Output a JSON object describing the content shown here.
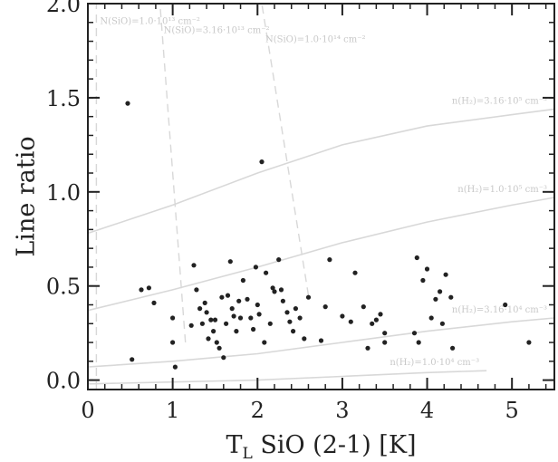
{
  "chart_data": {
    "type": "scatter",
    "title": "",
    "xlabel": "T",
    "xlabel_sub": "L",
    "xlabel_rest": " SiO (2-1) [K]",
    "ylabel": "Line ratio",
    "xlim": [
      0,
      5.5
    ],
    "ylim": [
      -0.05,
      2.0
    ],
    "x_ticks": [
      0,
      1,
      2,
      3,
      4,
      5
    ],
    "y_ticks": [
      0.0,
      0.5,
      1.0,
      1.5,
      2.0
    ],
    "y_tick_labels": [
      "0.0",
      "0.5",
      "1.0",
      "1.5",
      "2.0"
    ],
    "grid": false,
    "points": [
      [
        0.47,
        1.47
      ],
      [
        0.52,
        0.11
      ],
      [
        0.63,
        0.48
      ],
      [
        0.72,
        0.49
      ],
      [
        0.78,
        0.41
      ],
      [
        1.0,
        0.33
      ],
      [
        1.0,
        0.2
      ],
      [
        1.03,
        0.07
      ],
      [
        1.22,
        0.29
      ],
      [
        1.25,
        0.61
      ],
      [
        1.28,
        0.48
      ],
      [
        1.32,
        0.38
      ],
      [
        1.35,
        0.3
      ],
      [
        1.38,
        0.41
      ],
      [
        1.4,
        0.36
      ],
      [
        1.42,
        0.22
      ],
      [
        1.45,
        0.32
      ],
      [
        1.48,
        0.26
      ],
      [
        1.5,
        0.32
      ],
      [
        1.52,
        0.2
      ],
      [
        1.55,
        0.17
      ],
      [
        1.58,
        0.44
      ],
      [
        1.6,
        0.12
      ],
      [
        1.63,
        0.3
      ],
      [
        1.65,
        0.45
      ],
      [
        1.68,
        0.63
      ],
      [
        1.7,
        0.38
      ],
      [
        1.72,
        0.34
      ],
      [
        1.75,
        0.26
      ],
      [
        1.78,
        0.42
      ],
      [
        1.8,
        0.33
      ],
      [
        1.83,
        0.53
      ],
      [
        1.88,
        0.43
      ],
      [
        1.92,
        0.33
      ],
      [
        1.95,
        0.27
      ],
      [
        1.98,
        0.6
      ],
      [
        2.0,
        0.4
      ],
      [
        2.02,
        0.35
      ],
      [
        2.05,
        1.16
      ],
      [
        2.08,
        0.2
      ],
      [
        2.1,
        0.57
      ],
      [
        2.15,
        0.3
      ],
      [
        2.18,
        0.49
      ],
      [
        2.2,
        0.47
      ],
      [
        2.25,
        0.64
      ],
      [
        2.28,
        0.48
      ],
      [
        2.3,
        0.42
      ],
      [
        2.35,
        0.36
      ],
      [
        2.38,
        0.31
      ],
      [
        2.42,
        0.26
      ],
      [
        2.45,
        0.38
      ],
      [
        2.5,
        0.33
      ],
      [
        2.55,
        0.22
      ],
      [
        2.6,
        0.44
      ],
      [
        2.75,
        0.21
      ],
      [
        2.8,
        0.39
      ],
      [
        2.85,
        0.64
      ],
      [
        3.0,
        0.34
      ],
      [
        3.1,
        0.31
      ],
      [
        3.15,
        0.57
      ],
      [
        3.25,
        0.39
      ],
      [
        3.3,
        0.17
      ],
      [
        3.35,
        0.3
      ],
      [
        3.4,
        0.32
      ],
      [
        3.45,
        0.35
      ],
      [
        3.5,
        0.2
      ],
      [
        3.5,
        0.25
      ],
      [
        3.85,
        0.25
      ],
      [
        3.88,
        0.65
      ],
      [
        3.9,
        0.2
      ],
      [
        3.95,
        0.53
      ],
      [
        4.0,
        0.59
      ],
      [
        4.05,
        0.33
      ],
      [
        4.1,
        0.43
      ],
      [
        4.15,
        0.47
      ],
      [
        4.18,
        0.3
      ],
      [
        4.22,
        0.56
      ],
      [
        4.28,
        0.44
      ],
      [
        4.3,
        0.17
      ],
      [
        4.92,
        0.4
      ],
      [
        5.2,
        0.2
      ]
    ],
    "model_curves": [
      {
        "label": "n(H₂)=3.16·10⁵ cm⁻³",
        "points": [
          [
            0.0,
            0.78
          ],
          [
            1.0,
            0.93
          ],
          [
            2.0,
            1.1
          ],
          [
            3.0,
            1.25
          ],
          [
            4.0,
            1.35
          ],
          [
            5.0,
            1.41
          ],
          [
            5.5,
            1.44
          ]
        ]
      },
      {
        "label": "n(H₂)=1.0·10⁵ cm⁻³",
        "points": [
          [
            0.0,
            0.37
          ],
          [
            1.0,
            0.48
          ],
          [
            2.0,
            0.6
          ],
          [
            3.0,
            0.73
          ],
          [
            4.0,
            0.84
          ],
          [
            5.0,
            0.93
          ],
          [
            5.5,
            0.97
          ]
        ]
      },
      {
        "label": "n(H₂)=3.16·10⁴ cm⁻³",
        "points": [
          [
            0.0,
            0.07
          ],
          [
            1.0,
            0.1
          ],
          [
            2.0,
            0.14
          ],
          [
            3.0,
            0.2
          ],
          [
            4.0,
            0.26
          ],
          [
            5.0,
            0.31
          ],
          [
            5.5,
            0.33
          ]
        ]
      },
      {
        "label": "n(H₂)=1.0·10⁴ cm⁻³",
        "points": [
          [
            0.0,
            -0.02
          ],
          [
            1.0,
            -0.01
          ],
          [
            2.0,
            0.0
          ],
          [
            3.0,
            0.02
          ],
          [
            4.0,
            0.04
          ],
          [
            4.7,
            0.05
          ]
        ]
      }
    ],
    "column_lines": [
      {
        "label": "N(SiO)=1.0·10¹³ cm⁻²",
        "points": [
          [
            0.1,
            -0.05
          ],
          [
            0.1,
            2.0
          ]
        ]
      },
      {
        "label": "N(SiO)=3.16·10¹³ cm⁻²",
        "points": [
          [
            1.15,
            0.2
          ],
          [
            0.85,
            2.0
          ]
        ]
      },
      {
        "label": "N(SiO)=1.0·10¹⁴ cm⁻²",
        "points": [
          [
            2.6,
            0.45
          ],
          [
            2.05,
            2.0
          ]
        ]
      }
    ],
    "colors": {
      "points": "#222222",
      "curves": "#d8d8d8",
      "axis": "#222222"
    }
  }
}
